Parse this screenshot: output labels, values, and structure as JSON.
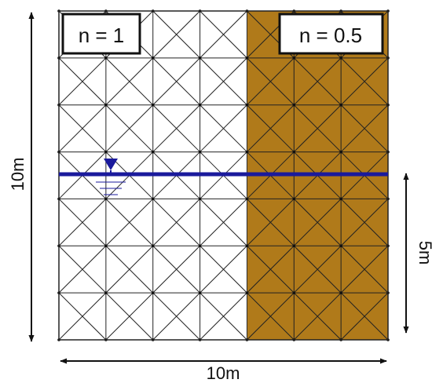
{
  "diagram": {
    "grid": {
      "columns": 7,
      "rows": 7
    },
    "regions": [
      {
        "label": "n = 1",
        "fill": "#ffffff"
      },
      {
        "label": "n = 0.5",
        "fill": "#b07a1a"
      }
    ],
    "dimensions": {
      "left_height": "10m",
      "bottom_width": "10m",
      "right_height": "5m"
    },
    "water_table": {
      "color": "#1a1a9c",
      "symbol": "water-table-triangle"
    }
  }
}
